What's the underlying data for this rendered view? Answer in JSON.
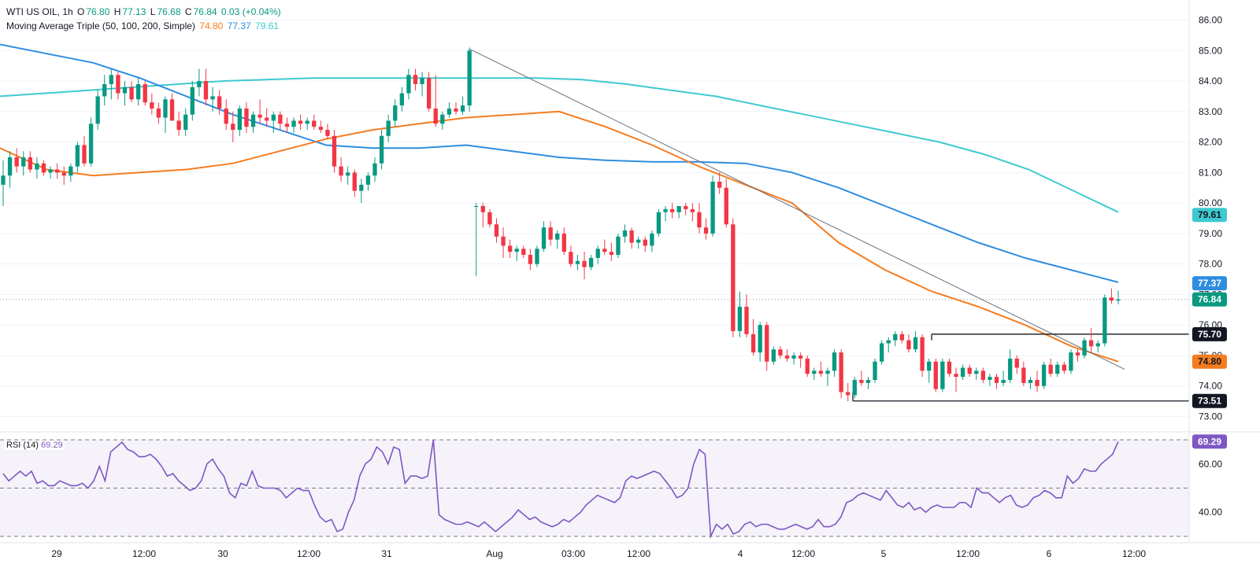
{
  "header": {
    "symbol": "WTI US OIL, 1h",
    "o_label": "O",
    "o": "76.80",
    "h_label": "H",
    "h": "77.13",
    "l_label": "L",
    "l": "76.68",
    "c_label": "C",
    "c": "76.84",
    "change": "0.03 (+0.04%)",
    "ma_name": "Moving Average Triple (50, 100, 200, Simple)",
    "ma50": "74.80",
    "ma100": "77.37",
    "ma200": "79.61",
    "rsi_name": "RSI (14)",
    "rsi_value": "69.29"
  },
  "colors": {
    "up": "#089981",
    "down": "#f23645",
    "ma50": "#f57c1f",
    "ma100": "#2f8de0",
    "ma200": "#3fc9d0",
    "rsi": "#7e57c2",
    "rsi_fill": "#ede7f6"
  },
  "chart_data": {
    "type": "candlestick",
    "symbol": "WTI US OIL",
    "timeframe": "1h",
    "y_axis_price": {
      "ylim": [
        72.6,
        86.4
      ],
      "ticks": [
        "86.00",
        "85.00",
        "84.00",
        "83.00",
        "82.00",
        "81.00",
        "80.00",
        "79.00",
        "78.00",
        "77.00",
        "76.00",
        "75.00",
        "74.00",
        "73.00"
      ]
    },
    "x_axis": {
      "tick_labels": [
        "29",
        "12:00",
        "30",
        "12:00",
        "31",
        "Aug",
        "03:00",
        "12:00",
        "4",
        "12:00",
        "5",
        "12:00",
        "6",
        "12:00"
      ]
    },
    "price_tags": [
      {
        "label": "ma200",
        "value": "79.61"
      },
      {
        "label": "ma100",
        "value": "77.37"
      },
      {
        "label": "last",
        "value": "76.84"
      },
      {
        "label": "level",
        "value": "75.70"
      },
      {
        "label": "ma50",
        "value": "74.80"
      },
      {
        "label": "level",
        "value": "73.51"
      }
    ],
    "horizontal_levels": [
      75.7,
      73.51
    ],
    "last_price": 76.84,
    "candles": [
      [
        80.6,
        81.4,
        79.9,
        80.9
      ],
      [
        80.9,
        81.7,
        80.5,
        81.5
      ],
      [
        81.5,
        81.8,
        81.0,
        81.2
      ],
      [
        81.2,
        81.7,
        80.9,
        81.5
      ],
      [
        81.5,
        81.7,
        81.0,
        81.1
      ],
      [
        81.1,
        81.5,
        80.8,
        81.3
      ],
      [
        81.3,
        81.4,
        80.9,
        81.0
      ],
      [
        81.0,
        81.2,
        80.8,
        81.1
      ],
      [
        81.1,
        81.3,
        80.8,
        81.0
      ],
      [
        81.0,
        81.2,
        80.6,
        80.9
      ],
      [
        80.9,
        81.3,
        80.7,
        81.2
      ],
      [
        81.2,
        82.0,
        81.0,
        81.9
      ],
      [
        81.9,
        82.2,
        81.2,
        81.3
      ],
      [
        81.3,
        82.8,
        81.2,
        82.6
      ],
      [
        82.6,
        83.7,
        82.4,
        83.5
      ],
      [
        83.5,
        84.2,
        83.2,
        83.9
      ],
      [
        83.9,
        84.4,
        83.4,
        84.2
      ],
      [
        84.2,
        84.3,
        83.4,
        83.6
      ],
      [
        83.6,
        84.0,
        83.2,
        83.8
      ],
      [
        83.8,
        84.0,
        83.3,
        83.4
      ],
      [
        83.4,
        84.1,
        83.2,
        83.9
      ],
      [
        83.9,
        84.0,
        83.2,
        83.3
      ],
      [
        83.3,
        83.6,
        82.9,
        83.1
      ],
      [
        83.1,
        83.3,
        82.6,
        82.8
      ],
      [
        82.8,
        83.5,
        82.3,
        83.4
      ],
      [
        83.4,
        83.6,
        82.8,
        82.7
      ],
      [
        82.7,
        83.0,
        82.2,
        82.4
      ],
      [
        82.4,
        83.1,
        82.2,
        82.9
      ],
      [
        82.9,
        84.0,
        82.7,
        83.8
      ],
      [
        83.8,
        84.4,
        83.5,
        84.0
      ],
      [
        84.0,
        84.4,
        83.2,
        83.4
      ],
      [
        83.4,
        83.8,
        83.0,
        83.5
      ],
      [
        83.5,
        83.7,
        82.9,
        83.1
      ],
      [
        83.1,
        83.4,
        82.4,
        82.6
      ],
      [
        82.6,
        83.0,
        82.0,
        82.4
      ],
      [
        82.4,
        83.2,
        82.2,
        83.1
      ],
      [
        83.1,
        83.3,
        82.3,
        82.5
      ],
      [
        82.5,
        83.0,
        82.3,
        82.9
      ],
      [
        82.9,
        83.4,
        82.6,
        82.8
      ],
      [
        82.8,
        83.1,
        82.5,
        82.7
      ],
      [
        82.7,
        83.0,
        82.3,
        82.9
      ],
      [
        82.9,
        83.0,
        82.4,
        82.6
      ],
      [
        82.6,
        82.8,
        82.3,
        82.5
      ],
      [
        82.5,
        82.8,
        82.3,
        82.7
      ],
      [
        82.7,
        82.9,
        82.4,
        82.6
      ],
      [
        82.6,
        82.8,
        82.4,
        82.7
      ],
      [
        82.7,
        82.9,
        82.4,
        82.5
      ],
      [
        82.5,
        82.7,
        82.3,
        82.4
      ],
      [
        82.4,
        82.6,
        82.1,
        82.2
      ],
      [
        82.2,
        82.4,
        81.0,
        81.2
      ],
      [
        81.2,
        81.5,
        80.7,
        80.9
      ],
      [
        80.9,
        81.2,
        80.6,
        81.0
      ],
      [
        81.0,
        81.1,
        80.2,
        80.4
      ],
      [
        80.4,
        80.8,
        80.0,
        80.6
      ],
      [
        80.6,
        81.0,
        80.4,
        80.9
      ],
      [
        80.9,
        81.5,
        80.7,
        81.3
      ],
      [
        81.3,
        82.4,
        81.1,
        82.2
      ],
      [
        82.2,
        82.9,
        82.0,
        82.7
      ],
      [
        82.7,
        83.4,
        82.5,
        83.2
      ],
      [
        83.2,
        83.8,
        83.0,
        83.6
      ],
      [
        83.6,
        84.4,
        83.4,
        84.2
      ],
      [
        84.2,
        84.4,
        83.7,
        83.9
      ],
      [
        83.9,
        84.3,
        83.5,
        84.1
      ],
      [
        84.1,
        84.3,
        83.0,
        83.1
      ],
      [
        83.1,
        84.2,
        82.5,
        82.6
      ],
      [
        82.6,
        83.0,
        82.4,
        82.9
      ],
      [
        82.9,
        83.3,
        82.8,
        83.1
      ],
      [
        83.1,
        83.3,
        82.9,
        83.0
      ],
      [
        83.0,
        83.5,
        82.9,
        83.2
      ],
      [
        83.2,
        85.1,
        83.0,
        85.0
      ],
      [
        79.9,
        80.0,
        77.6,
        79.9
      ],
      [
        79.9,
        80.0,
        79.2,
        79.7
      ],
      [
        79.7,
        79.8,
        79.2,
        79.3
      ],
      [
        79.3,
        79.5,
        78.7,
        78.9
      ],
      [
        78.9,
        79.2,
        78.2,
        78.6
      ],
      [
        78.6,
        78.8,
        78.2,
        78.4
      ],
      [
        78.4,
        78.6,
        78.1,
        78.5
      ],
      [
        78.5,
        78.6,
        78.2,
        78.3
      ],
      [
        78.3,
        78.5,
        77.8,
        78.0
      ],
      [
        78.0,
        78.6,
        77.9,
        78.5
      ],
      [
        78.5,
        79.4,
        78.4,
        79.2
      ],
      [
        79.2,
        79.4,
        78.6,
        78.8
      ],
      [
        78.8,
        79.1,
        78.5,
        79.0
      ],
      [
        79.0,
        79.2,
        78.3,
        78.4
      ],
      [
        78.4,
        78.6,
        77.9,
        78.0
      ],
      [
        78.0,
        78.3,
        77.8,
        78.1
      ],
      [
        78.1,
        78.4,
        77.5,
        77.9
      ],
      [
        77.9,
        78.3,
        77.8,
        78.2
      ],
      [
        78.2,
        78.6,
        78.0,
        78.5
      ],
      [
        78.5,
        78.8,
        78.3,
        78.4
      ],
      [
        78.4,
        78.7,
        78.1,
        78.3
      ],
      [
        78.3,
        79.0,
        78.2,
        78.9
      ],
      [
        78.9,
        79.3,
        78.7,
        79.1
      ],
      [
        79.1,
        79.2,
        78.5,
        78.7
      ],
      [
        78.7,
        78.9,
        78.5,
        78.8
      ],
      [
        78.8,
        78.9,
        78.4,
        78.6
      ],
      [
        78.6,
        79.1,
        78.4,
        79.0
      ],
      [
        79.0,
        79.8,
        78.9,
        79.7
      ],
      [
        79.7,
        79.9,
        79.4,
        79.8
      ],
      [
        79.8,
        80.0,
        79.5,
        79.7
      ],
      [
        79.7,
        79.9,
        79.5,
        79.9
      ],
      [
        79.9,
        80.0,
        79.6,
        79.8
      ],
      [
        79.8,
        80.0,
        79.4,
        79.7
      ],
      [
        79.7,
        80.0,
        79.0,
        79.2
      ],
      [
        79.2,
        79.5,
        78.8,
        79.0
      ],
      [
        79.0,
        80.9,
        78.9,
        80.7
      ],
      [
        80.7,
        81.0,
        80.3,
        80.5
      ],
      [
        80.5,
        80.8,
        79.2,
        79.3
      ],
      [
        79.3,
        79.5,
        75.6,
        75.8
      ],
      [
        75.8,
        77.1,
        75.6,
        76.6
      ],
      [
        76.6,
        77.0,
        75.6,
        75.7
      ],
      [
        75.7,
        76.2,
        75.0,
        75.1
      ],
      [
        75.1,
        76.1,
        74.8,
        76.0
      ],
      [
        76.0,
        76.1,
        74.5,
        74.8
      ],
      [
        74.8,
        75.3,
        74.7,
        75.2
      ],
      [
        75.2,
        75.3,
        74.9,
        75.0
      ],
      [
        75.0,
        75.2,
        74.8,
        74.9
      ],
      [
        74.9,
        75.1,
        74.7,
        75.0
      ],
      [
        75.0,
        75.1,
        74.6,
        74.9
      ],
      [
        74.9,
        75.0,
        74.3,
        74.4
      ],
      [
        74.4,
        74.6,
        74.2,
        74.5
      ],
      [
        74.5,
        74.8,
        74.3,
        74.4
      ],
      [
        74.4,
        74.6,
        74.0,
        74.5
      ],
      [
        74.5,
        75.2,
        74.3,
        75.1
      ],
      [
        75.1,
        75.2,
        73.6,
        73.8
      ],
      [
        73.8,
        74.1,
        73.5,
        73.7
      ],
      [
        73.7,
        74.3,
        73.6,
        74.2
      ],
      [
        74.2,
        74.5,
        74.0,
        74.1
      ],
      [
        74.1,
        74.3,
        73.9,
        74.2
      ],
      [
        74.2,
        74.9,
        74.1,
        74.8
      ],
      [
        74.8,
        75.5,
        74.7,
        75.4
      ],
      [
        75.4,
        75.6,
        75.1,
        75.5
      ],
      [
        75.5,
        75.8,
        75.3,
        75.7
      ],
      [
        75.7,
        75.8,
        75.4,
        75.5
      ],
      [
        75.5,
        75.7,
        75.1,
        75.2
      ],
      [
        75.2,
        75.8,
        75.1,
        75.6
      ],
      [
        75.6,
        75.7,
        74.3,
        74.5
      ],
      [
        74.5,
        74.9,
        74.1,
        74.8
      ],
      [
        74.8,
        74.9,
        73.8,
        73.9
      ],
      [
        73.9,
        74.9,
        73.8,
        74.8
      ],
      [
        74.8,
        74.9,
        74.3,
        74.4
      ],
      [
        74.4,
        74.6,
        73.8,
        74.3
      ],
      [
        74.3,
        74.7,
        74.2,
        74.6
      ],
      [
        74.6,
        74.7,
        74.3,
        74.4
      ],
      [
        74.4,
        74.6,
        74.2,
        74.5
      ],
      [
        74.5,
        74.6,
        74.1,
        74.2
      ],
      [
        74.2,
        74.4,
        74.0,
        74.3
      ],
      [
        74.3,
        74.4,
        73.9,
        74.1
      ],
      [
        74.1,
        74.5,
        74.0,
        74.2
      ],
      [
        74.2,
        75.2,
        74.1,
        74.9
      ],
      [
        74.9,
        75.0,
        74.4,
        74.6
      ],
      [
        74.6,
        74.8,
        74.0,
        74.1
      ],
      [
        74.1,
        74.3,
        73.9,
        74.2
      ],
      [
        74.2,
        74.5,
        73.8,
        74.0
      ],
      [
        74.0,
        74.8,
        73.9,
        74.7
      ],
      [
        74.7,
        74.9,
        74.3,
        74.4
      ],
      [
        74.4,
        74.8,
        74.3,
        74.7
      ],
      [
        74.7,
        74.8,
        74.4,
        74.5
      ],
      [
        74.5,
        75.2,
        74.4,
        75.1
      ],
      [
        75.1,
        75.2,
        74.8,
        75.0
      ],
      [
        75.0,
        75.6,
        74.9,
        75.5
      ],
      [
        75.5,
        75.9,
        75.1,
        75.3
      ],
      [
        75.3,
        75.5,
        75.1,
        75.4
      ],
      [
        75.4,
        77.0,
        75.3,
        76.9
      ],
      [
        76.9,
        77.2,
        76.7,
        76.8
      ],
      [
        76.8,
        77.13,
        76.68,
        76.84
      ]
    ],
    "ma200": [
      83.5,
      83.6,
      83.7,
      83.8,
      83.9,
      84.0,
      84.05,
      84.1,
      84.1,
      84.1,
      84.1,
      84.1,
      84.1,
      84.05,
      83.9,
      83.7,
      83.5,
      83.2,
      82.9,
      82.6,
      82.3,
      82.0,
      81.6,
      81.1,
      80.4,
      79.7
    ],
    "ma100": [
      85.2,
      84.9,
      84.6,
      84.1,
      83.5,
      82.9,
      82.4,
      81.9,
      81.8,
      81.8,
      81.9,
      81.7,
      81.5,
      81.4,
      81.35,
      81.35,
      81.3,
      81.0,
      80.5,
      79.9,
      79.3,
      78.7,
      78.2,
      77.8,
      77.4
    ],
    "ma50": [
      81.8,
      81.1,
      80.9,
      81.0,
      81.1,
      81.3,
      81.7,
      82.1,
      82.4,
      82.6,
      82.8,
      82.9,
      83.0,
      82.5,
      81.9,
      81.2,
      80.6,
      80.0,
      78.7,
      77.8,
      77.1,
      76.6,
      76.0,
      75.3,
      74.8
    ],
    "rsi": {
      "ylim": [
        28,
        72
      ],
      "ticks": [
        "60.00",
        "40.00"
      ],
      "overbought": 70,
      "mid": 50,
      "oversold": 30,
      "values": [
        56,
        53,
        55,
        57,
        55,
        57,
        52,
        53,
        51,
        51,
        53,
        52,
        51,
        51,
        52,
        50,
        53,
        59,
        53,
        65,
        67,
        69,
        66,
        65,
        63,
        63,
        64,
        62,
        59,
        55,
        56,
        53,
        51,
        49,
        50,
        53,
        60,
        62,
        58,
        55,
        48,
        46,
        52,
        51,
        57,
        51,
        50,
        50,
        50,
        49,
        46,
        48,
        50,
        49,
        49,
        43,
        38,
        36,
        37,
        32,
        33,
        40,
        45,
        55,
        60,
        62,
        67,
        65,
        60,
        67,
        66,
        52,
        55,
        55,
        54,
        55,
        70,
        39,
        37,
        36,
        35,
        35,
        36,
        35,
        34,
        36,
        34,
        32,
        34,
        36,
        38,
        41,
        39,
        37,
        38,
        36,
        35,
        34,
        35,
        37,
        36,
        38,
        40,
        43,
        45,
        47,
        46,
        45,
        44,
        46,
        53,
        55,
        54,
        55,
        56,
        57,
        56,
        53,
        50,
        46,
        47,
        50,
        60,
        66,
        64,
        30,
        35,
        33,
        35,
        31,
        32,
        35,
        36,
        34,
        35,
        35,
        34,
        33,
        33,
        34,
        35,
        34,
        33,
        34,
        37,
        34,
        34,
        35,
        38,
        44,
        45,
        47,
        48,
        47,
        46,
        45,
        49,
        46,
        43,
        42,
        44,
        41,
        42,
        40,
        42,
        43,
        42,
        42,
        42,
        44,
        44,
        42,
        50,
        48,
        48,
        46,
        44,
        46,
        47,
        43,
        42,
        43,
        46,
        47,
        49,
        48,
        46,
        46,
        55,
        52,
        54,
        58,
        57,
        57,
        60,
        62,
        64,
        69.29
      ]
    }
  }
}
